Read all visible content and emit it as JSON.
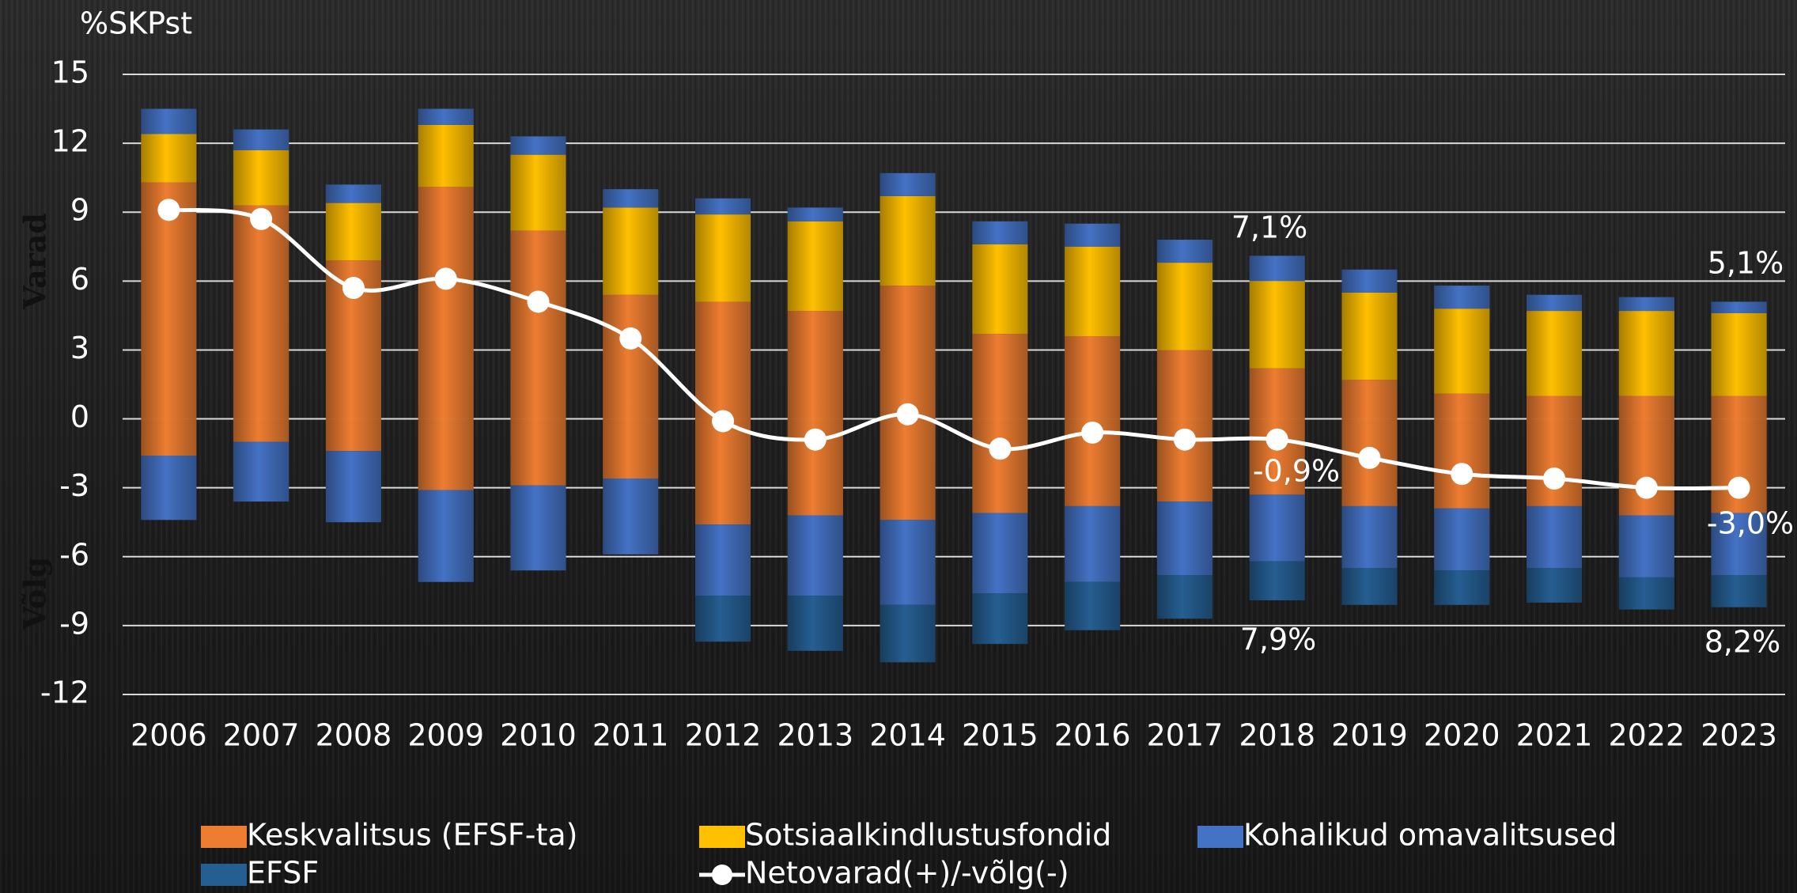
{
  "chart_data": {
    "type": "stacked_bar_line",
    "y_unit_label": "%SKPst",
    "side_labels": [
      "Varad",
      "Võlg"
    ],
    "categories": [
      "2006",
      "2007",
      "2008",
      "2009",
      "2010",
      "2011",
      "2012",
      "2013",
      "2014",
      "2015",
      "2016",
      "2017",
      "2018",
      "2019",
      "2020",
      "2021",
      "2022",
      "2023"
    ],
    "series": [
      {
        "name": "Keskvalitsus (EFSF-ta)",
        "color": "#ed7d31",
        "assets": [
          10.3,
          9.3,
          6.9,
          10.1,
          8.2,
          5.4,
          5.1,
          4.7,
          5.8,
          3.7,
          3.6,
          3.0,
          2.2,
          1.7,
          1.1,
          1.0,
          1.0,
          1.0
        ],
        "liabilities": [
          -1.6,
          -1.0,
          -1.4,
          -3.1,
          -2.9,
          -2.6,
          -4.6,
          -4.2,
          -4.4,
          -4.1,
          -3.8,
          -3.6,
          -3.3,
          -3.8,
          -3.9,
          -3.8,
          -4.2,
          -4.1
        ]
      },
      {
        "name": "Sotsiaalkindlustusfondid",
        "color": "#ffc000",
        "assets": [
          2.1,
          2.4,
          2.5,
          2.7,
          3.3,
          3.8,
          3.8,
          3.9,
          3.9,
          3.9,
          3.9,
          3.8,
          3.8,
          3.8,
          3.7,
          3.7,
          3.7,
          3.6
        ],
        "liabilities": [
          0,
          0,
          0,
          0,
          0,
          0,
          0,
          0,
          0,
          0,
          0,
          0,
          0,
          0,
          0,
          0,
          0,
          0
        ]
      },
      {
        "name": "Kohalikud omavalitsused",
        "color": "#4472c4",
        "assets": [
          1.1,
          0.9,
          0.8,
          0.7,
          0.8,
          0.8,
          0.7,
          0.6,
          1.0,
          1.0,
          1.0,
          1.0,
          1.1,
          1.0,
          1.0,
          0.7,
          0.6,
          0.5
        ],
        "liabilities": [
          -2.8,
          -2.6,
          -3.1,
          -4.0,
          -3.7,
          -3.3,
          -3.1,
          -3.5,
          -3.7,
          -3.5,
          -3.3,
          -3.2,
          -2.9,
          -2.7,
          -2.7,
          -2.7,
          -2.7,
          -2.7
        ]
      },
      {
        "name": "EFSF",
        "color": "#255e91",
        "assets": [
          0,
          0,
          0,
          0,
          0,
          0,
          0,
          0,
          0,
          0,
          0,
          0,
          0,
          0,
          0,
          0,
          0,
          0
        ],
        "liabilities": [
          0,
          0,
          0,
          0,
          0,
          0,
          -2.0,
          -2.4,
          -2.5,
          -2.2,
          -2.1,
          -1.9,
          -1.7,
          -1.6,
          -1.5,
          -1.5,
          -1.4,
          -1.4
        ]
      }
    ],
    "line": {
      "name": "Netovarad(+)/-võlg(-)",
      "color": "#ffffff",
      "values": [
        9.1,
        8.7,
        5.7,
        6.1,
        5.1,
        3.5,
        -0.1,
        -0.9,
        0.2,
        -1.3,
        -0.6,
        -0.9,
        -0.9,
        -1.7,
        -2.4,
        -2.6,
        -3.0,
        -3.0
      ]
    },
    "annotations": [
      "7,1%",
      "-0,9%",
      "7,9%",
      "5,1%",
      "-3,0%",
      "8,2%"
    ],
    "ylim": [
      -12,
      15
    ],
    "yticks": [
      15,
      12,
      9,
      6,
      3,
      0,
      -3,
      -6,
      -9,
      -12
    ],
    "grid": true
  }
}
